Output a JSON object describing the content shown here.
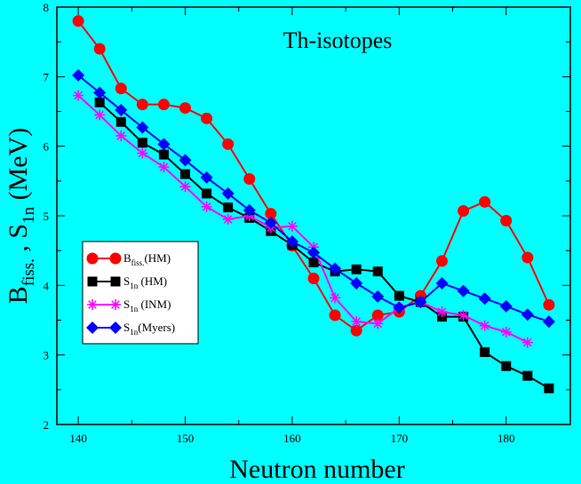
{
  "chart_data": {
    "type": "line",
    "title": "Th-isotopes",
    "xlabel": "Neutron number",
    "ylabel": {
      "main1": "B",
      "sub1": "fiss.",
      "sep": " , ",
      "main2": "S",
      "sub2": "1n",
      "unit": " (MeV)"
    },
    "xlim": [
      138,
      186
    ],
    "ylim": [
      2,
      8
    ],
    "x_ticks": [
      140,
      150,
      160,
      170,
      180
    ],
    "y_ticks": [
      2,
      3,
      4,
      5,
      6,
      7,
      8
    ],
    "legend_position": "bottom-left",
    "series": [
      {
        "name": "B_fiss.(HM)",
        "legend": {
          "main": "B",
          "sub": "fiss.",
          "suffix": "(HM)"
        },
        "color": "#ff0000",
        "marker": "circle",
        "x": [
          140,
          142,
          144,
          146,
          148,
          150,
          152,
          154,
          156,
          158,
          160,
          162,
          164,
          166,
          168,
          170,
          172,
          174,
          176,
          178,
          180,
          182,
          184
        ],
        "values": [
          7.8,
          7.4,
          6.83,
          6.6,
          6.6,
          6.55,
          6.4,
          6.03,
          5.53,
          5.03,
          4.57,
          4.1,
          3.57,
          3.35,
          3.57,
          3.62,
          3.85,
          4.35,
          5.07,
          5.2,
          4.93,
          4.4,
          3.72
        ]
      },
      {
        "name": "S_1n (HM)",
        "legend": {
          "main": "S",
          "sub": "1n",
          "suffix": " (HM)"
        },
        "color": "#000000",
        "marker": "square",
        "x": [
          142,
          144,
          146,
          148,
          150,
          152,
          154,
          156,
          158,
          160,
          162,
          164,
          166,
          168,
          170,
          172,
          174,
          176,
          178,
          180,
          182,
          184
        ],
        "values": [
          6.63,
          6.35,
          6.05,
          5.88,
          5.6,
          5.32,
          5.12,
          4.97,
          4.78,
          4.58,
          4.33,
          4.2,
          4.23,
          4.2,
          3.85,
          3.76,
          3.55,
          3.55,
          3.04,
          2.84,
          2.7,
          2.52
        ]
      },
      {
        "name": "S_1n (INM)",
        "legend": {
          "main": "S",
          "sub": "1n",
          "suffix": " (INM)"
        },
        "color": "#ff00ff",
        "marker": "star",
        "x": [
          140,
          142,
          144,
          146,
          148,
          150,
          152,
          154,
          156,
          158,
          160,
          162,
          164,
          166,
          168,
          170,
          172,
          174,
          176,
          178,
          180,
          182
        ],
        "values": [
          6.73,
          6.45,
          6.15,
          5.9,
          5.7,
          5.42,
          5.13,
          4.95,
          5.0,
          4.83,
          4.85,
          4.55,
          3.82,
          3.48,
          3.45,
          3.68,
          3.76,
          3.62,
          3.57,
          3.42,
          3.33,
          3.18
        ]
      },
      {
        "name": "S_1n(Myers)",
        "legend": {
          "main": "S",
          "sub": "1n",
          "suffix": "(Myers)"
        },
        "color": "#0000ff",
        "marker": "diamond",
        "x": [
          140,
          142,
          144,
          146,
          148,
          150,
          152,
          154,
          156,
          158,
          160,
          162,
          164,
          166,
          168,
          170,
          172,
          174,
          176,
          178,
          180,
          182,
          184
        ],
        "values": [
          7.02,
          6.77,
          6.52,
          6.27,
          6.03,
          5.8,
          5.55,
          5.32,
          5.08,
          4.9,
          4.63,
          4.47,
          4.24,
          4.03,
          3.84,
          3.68,
          3.76,
          4.03,
          3.92,
          3.81,
          3.7,
          3.58,
          3.48
        ]
      }
    ]
  }
}
